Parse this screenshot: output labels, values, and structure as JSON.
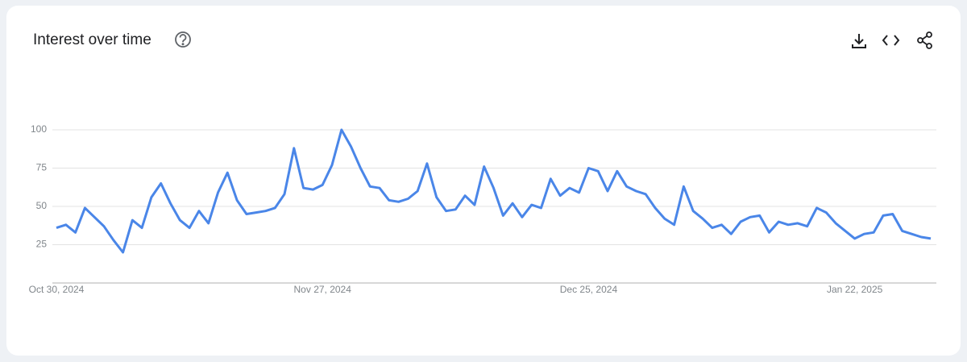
{
  "chart_data": {
    "type": "line",
    "title": "Interest over time",
    "categories": [
      "Oct 30, 2024",
      null,
      null,
      null,
      null,
      null,
      null,
      null,
      null,
      null,
      null,
      null,
      null,
      null,
      null,
      null,
      null,
      null,
      null,
      null,
      null,
      null,
      null,
      null,
      null,
      null,
      null,
      null,
      "Nov 27, 2024",
      null,
      null,
      null,
      null,
      null,
      null,
      null,
      null,
      null,
      null,
      null,
      null,
      null,
      null,
      null,
      null,
      null,
      null,
      null,
      null,
      null,
      null,
      null,
      null,
      null,
      null,
      null,
      "Dec 25, 2024",
      null,
      null,
      null,
      null,
      null,
      null,
      null,
      null,
      null,
      null,
      null,
      null,
      null,
      null,
      null,
      null,
      null,
      null,
      null,
      null,
      null,
      null,
      null,
      null,
      null,
      null,
      null,
      "Jan 22, 2025",
      null,
      null,
      null,
      null,
      null,
      null,
      null,
      null
    ],
    "values": [
      36,
      38,
      33,
      49,
      43,
      37,
      28,
      20,
      41,
      36,
      56,
      65,
      52,
      41,
      36,
      47,
      39,
      59,
      72,
      54,
      45,
      46,
      47,
      49,
      58,
      88,
      62,
      61,
      64,
      77,
      100,
      89,
      75,
      63,
      62,
      54,
      53,
      55,
      60,
      78,
      56,
      47,
      48,
      57,
      51,
      76,
      62,
      44,
      52,
      43,
      51,
      49,
      68,
      57,
      62,
      59,
      75,
      73,
      60,
      73,
      63,
      60,
      58,
      49,
      42,
      38,
      63,
      47,
      42,
      36,
      38,
      32,
      40,
      43,
      44,
      33,
      40,
      38,
      39,
      37,
      49,
      46,
      39,
      34,
      29,
      32,
      33,
      44,
      45,
      34,
      32,
      30,
      29
    ],
    "color": "#4a86e8",
    "ylim": [
      0,
      100
    ],
    "yticks": [
      25,
      50,
      75,
      100
    ],
    "grid": true
  }
}
